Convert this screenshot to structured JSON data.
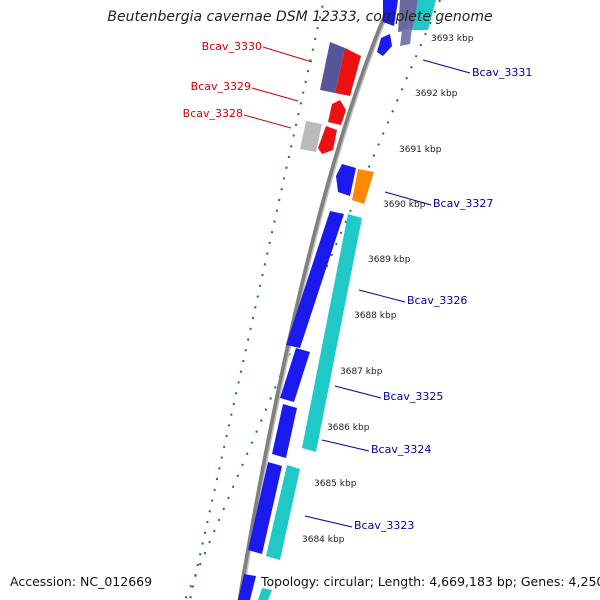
{
  "title": "Beutenbergia cavernae DSM 12333, complete genome",
  "footer": {
    "accession": "Accession: NC_012669",
    "summary": "Topology: circular; Length: 4,669,183 bp; Genes: 4,250"
  },
  "colors": {
    "reverse_label": "#cc0000",
    "forward_label": "#000099",
    "backbone": "#808080",
    "gc_dots": "#1a7a1a"
  },
  "ticks": [
    "3684 kbp",
    "3685 kbp",
    "3686 kbp",
    "3687 kbp",
    "3688 kbp",
    "3689 kbp",
    "3690 kbp",
    "3691 kbp",
    "3692 kbp",
    "3693 kbp"
  ],
  "genes": [
    {
      "label": "Bcav_3330",
      "strand": "reverse"
    },
    {
      "label": "Bcav_3329",
      "strand": "reverse"
    },
    {
      "label": "Bcav_3328",
      "strand": "reverse"
    },
    {
      "label": "Bcav_3331",
      "strand": "forward"
    },
    {
      "label": "Bcav_3327",
      "strand": "forward"
    },
    {
      "label": "Bcav_3326",
      "strand": "forward"
    },
    {
      "label": "Bcav_3325",
      "strand": "forward"
    },
    {
      "label": "Bcav_3324",
      "strand": "forward"
    },
    {
      "label": "Bcav_3323",
      "strand": "forward"
    }
  ]
}
